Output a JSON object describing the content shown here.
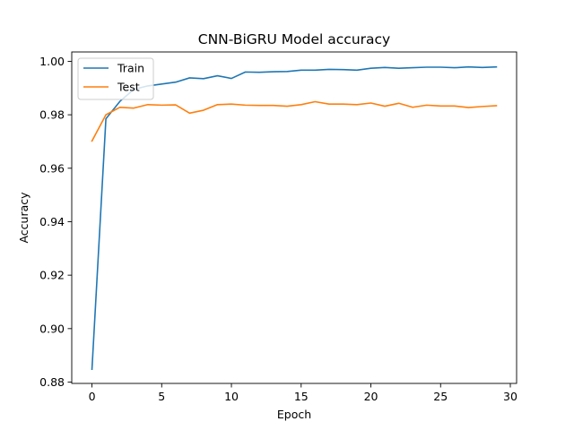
{
  "chart_data": {
    "type": "line",
    "title": "CNN-BiGRU Model accuracy",
    "xlabel": "Epoch",
    "ylabel": "Accuracy",
    "xlim": [
      -1.45,
      30.45
    ],
    "ylim": [
      0.8795,
      1.0035
    ],
    "xticks": [
      0,
      5,
      10,
      15,
      20,
      25,
      30
    ],
    "xtick_labels": [
      "0",
      "5",
      "10",
      "15",
      "20",
      "25",
      "30"
    ],
    "yticks": [
      0.88,
      0.9,
      0.92,
      0.94,
      0.96,
      0.98,
      1.0
    ],
    "ytick_labels": [
      "0.88",
      "0.90",
      "0.92",
      "0.94",
      "0.96",
      "0.98",
      "1.00"
    ],
    "grid": false,
    "legend_position": "upper-left",
    "x": [
      0,
      1,
      2,
      3,
      4,
      5,
      6,
      7,
      8,
      9,
      10,
      11,
      12,
      13,
      14,
      15,
      16,
      17,
      18,
      19,
      20,
      21,
      22,
      23,
      24,
      25,
      26,
      27,
      28,
      29
    ],
    "series": [
      {
        "name": "Train",
        "color": "#1f77b4",
        "values": [
          0.8848,
          0.9785,
          0.985,
          0.9895,
          0.9908,
          0.9915,
          0.9922,
          0.9938,
          0.9935,
          0.9946,
          0.9936,
          0.996,
          0.9959,
          0.9961,
          0.9962,
          0.9967,
          0.9967,
          0.997,
          0.9969,
          0.9967,
          0.9974,
          0.9977,
          0.9974,
          0.9976,
          0.9978,
          0.9978,
          0.9976,
          0.9979,
          0.9977,
          0.9979
        ]
      },
      {
        "name": "Test",
        "color": "#ff7f0e",
        "values": [
          0.9702,
          0.98,
          0.9828,
          0.9825,
          0.9838,
          0.9836,
          0.9837,
          0.9806,
          0.9817,
          0.9838,
          0.984,
          0.9836,
          0.9835,
          0.9835,
          0.9832,
          0.9838,
          0.9849,
          0.984,
          0.984,
          0.9838,
          0.9844,
          0.9832,
          0.9843,
          0.9828,
          0.9836,
          0.9833,
          0.9833,
          0.9827,
          0.9831,
          0.9834
        ]
      }
    ]
  }
}
